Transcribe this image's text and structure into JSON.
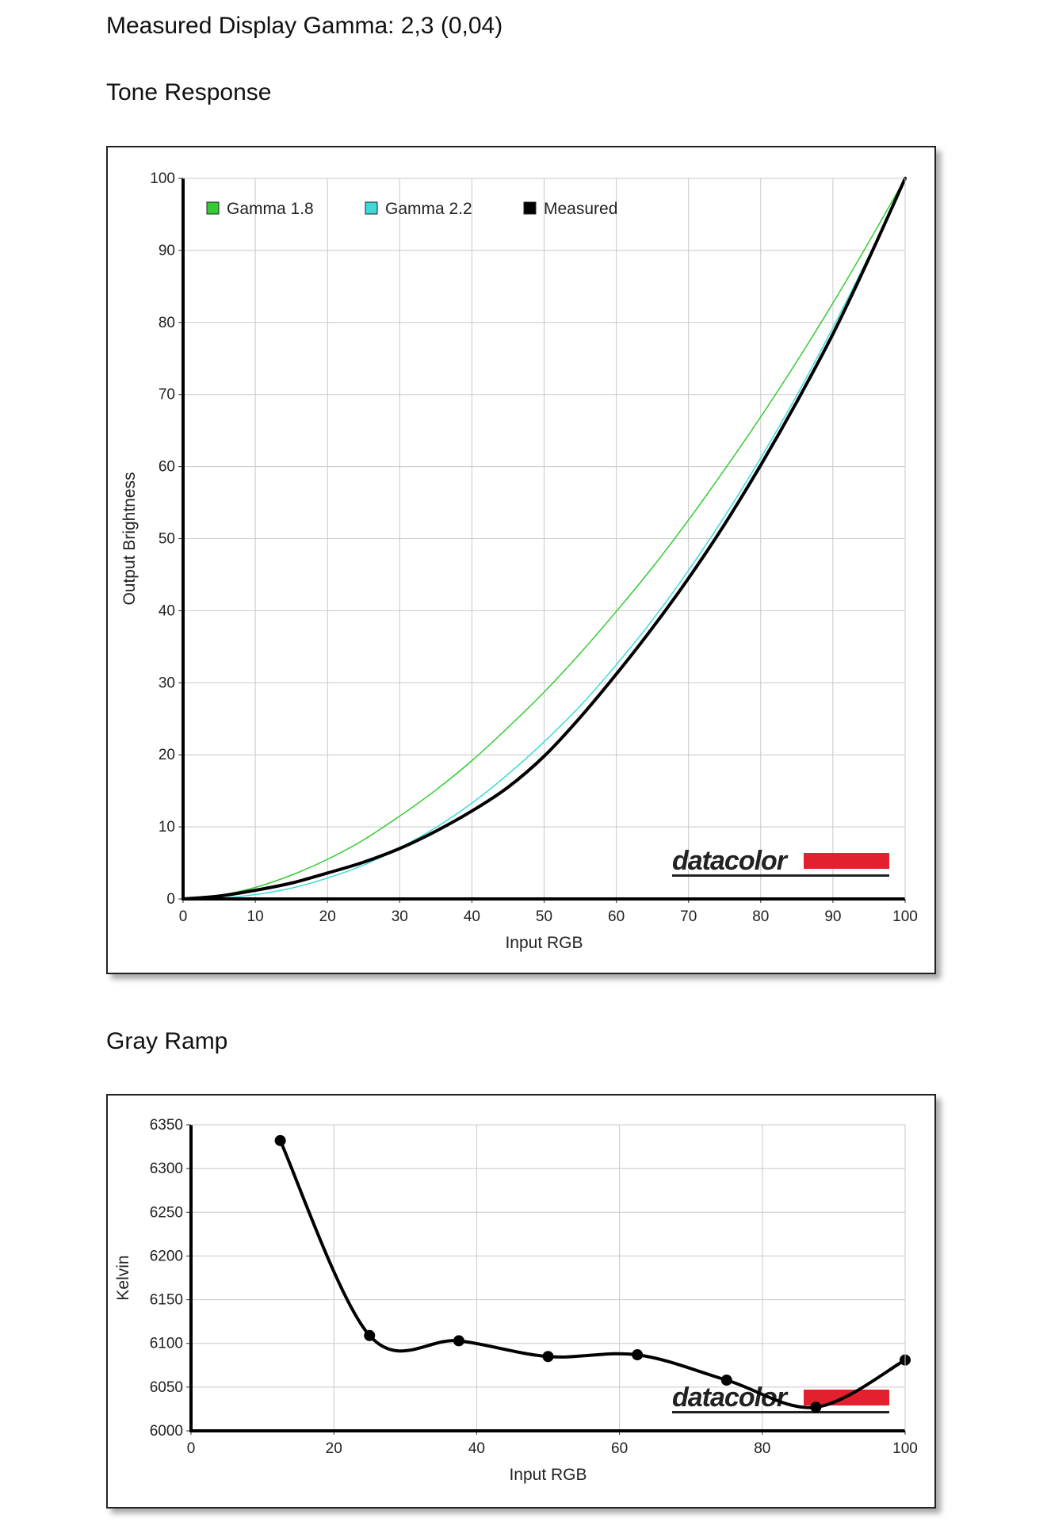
{
  "page": {
    "measured_gamma": "Measured Display Gamma: 2,3 (0,04)",
    "tone_title": "Tone Response",
    "gray_title": "Gray Ramp"
  },
  "logo_text": "datacolor",
  "colors": {
    "gamma18": "#33cc33",
    "gamma22": "#3fd9d9",
    "measured": "#000000",
    "logo_red": "#e3202e",
    "grid": "#c8c8c8"
  },
  "chart_data": [
    {
      "type": "line",
      "title": "Tone Response",
      "xlabel": "Input RGB",
      "ylabel": "Output Brightness",
      "xlim": [
        0,
        100
      ],
      "ylim": [
        0,
        100
      ],
      "xticks": [
        0,
        10,
        20,
        30,
        40,
        50,
        60,
        70,
        80,
        90,
        100
      ],
      "yticks": [
        0,
        10,
        20,
        30,
        40,
        50,
        60,
        70,
        80,
        90,
        100
      ],
      "grid": true,
      "legend_position": "top-left",
      "series": [
        {
          "name": "Gamma 1.8",
          "color": "#33cc33",
          "width": 1.5,
          "x": [
            0,
            5,
            10,
            15,
            20,
            25,
            30,
            35,
            40,
            45,
            50,
            55,
            60,
            65,
            70,
            75,
            80,
            85,
            90,
            95,
            100
          ],
          "y": [
            0,
            0.5,
            1.6,
            3.3,
            5.5,
            8.2,
            11.5,
            15.1,
            19.2,
            23.8,
            28.7,
            34.1,
            39.9,
            46.0,
            52.6,
            59.6,
            66.9,
            74.6,
            82.7,
            91.2,
            100
          ]
        },
        {
          "name": "Gamma 2.2",
          "color": "#3fd9d9",
          "width": 1.5,
          "x": [
            0,
            5,
            10,
            15,
            20,
            25,
            30,
            35,
            40,
            45,
            50,
            55,
            60,
            65,
            70,
            75,
            80,
            85,
            90,
            95,
            100
          ],
          "y": [
            0,
            0.1,
            0.6,
            1.5,
            2.9,
            4.7,
            7.1,
            9.9,
            13.3,
            17.3,
            21.8,
            26.8,
            32.5,
            38.7,
            45.6,
            53.1,
            61.2,
            69.9,
            79.3,
            89.3,
            100
          ]
        },
        {
          "name": "Measured",
          "color": "#000000",
          "width": 4,
          "x": [
            0,
            5,
            10,
            15,
            20,
            25,
            30,
            35,
            40,
            45,
            50,
            55,
            60,
            65,
            70,
            75,
            80,
            85,
            90,
            95,
            100
          ],
          "y": [
            0,
            0.4,
            1.2,
            2.2,
            3.6,
            5.1,
            7.0,
            9.4,
            12.2,
            15.5,
            19.8,
            25.2,
            31.2,
            37.6,
            44.5,
            52.0,
            60.2,
            69.0,
            78.4,
            88.9,
            100
          ]
        }
      ]
    },
    {
      "type": "line",
      "title": "Gray Ramp",
      "xlabel": "Input RGB",
      "ylabel": "Kelvin",
      "xlim": [
        0,
        100
      ],
      "ylim": [
        6000,
        6350
      ],
      "xticks": [
        0,
        20,
        40,
        60,
        80,
        100
      ],
      "yticks": [
        6000,
        6050,
        6100,
        6150,
        6200,
        6250,
        6300,
        6350
      ],
      "grid": true,
      "series": [
        {
          "color": "#000000",
          "width": 4,
          "x": [
            12.5,
            25,
            37.5,
            50,
            62.5,
            75,
            87.5,
            100
          ],
          "y": [
            6332,
            6109,
            6103,
            6085,
            6087,
            6058,
            6027,
            6081
          ]
        }
      ]
    }
  ]
}
